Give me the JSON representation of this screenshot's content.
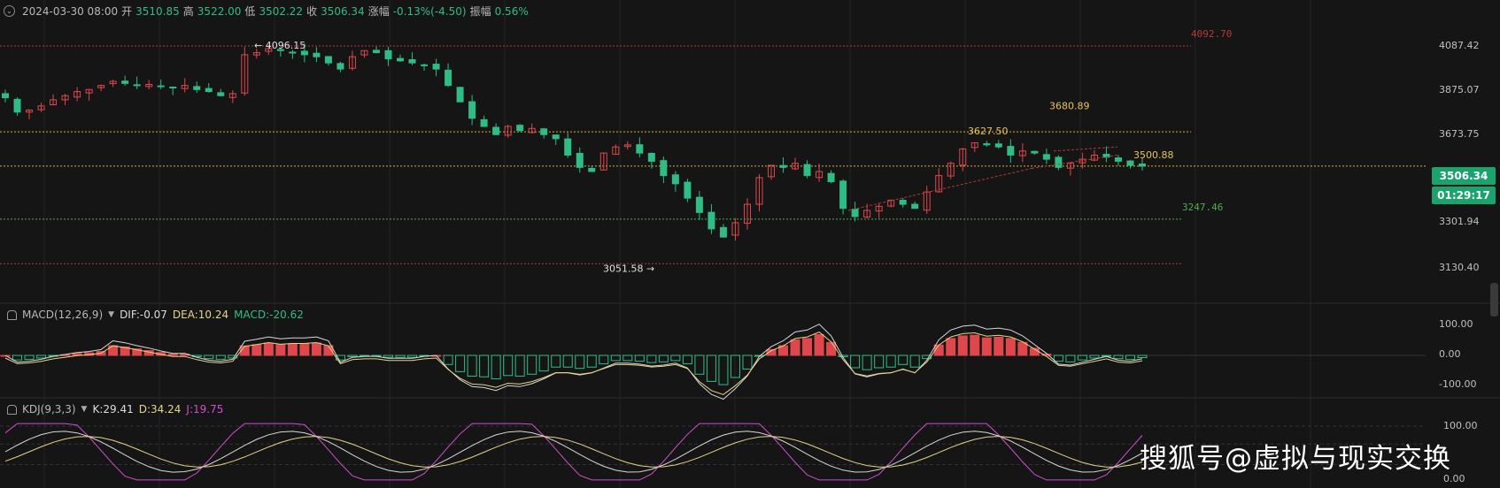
{
  "header": {
    "datetime": "2024-03-30 08:00",
    "open_label": "开",
    "open": "3510.85",
    "high_label": "高",
    "high": "3522.00",
    "low_label": "低",
    "low": "3502.22",
    "close_label": "收",
    "close": "3506.34",
    "change_label": "涨幅",
    "change": "-0.13%(-4.50)",
    "amplitude_label": "振幅",
    "amplitude": "0.56%"
  },
  "price_axis": {
    "ticks": [
      "4087.42",
      "3875.07",
      "3673.75",
      "3301.94",
      "3130.40"
    ],
    "current_price": "3506.34",
    "countdown": "01:29:17"
  },
  "levels": [
    {
      "price": 4092.7,
      "label": "4092.70",
      "color": "#b23a3a"
    },
    {
      "price": 3673.75,
      "label": "",
      "color": "#d6b43a"
    },
    {
      "price": 3506.34,
      "label": "",
      "color": "#d6b43a"
    },
    {
      "price": 3247.46,
      "label": "3247.46",
      "color": "#4caf50"
    },
    {
      "price": 3030.0,
      "label": "",
      "color": "#b23a3a"
    }
  ],
  "annotations": {
    "high_marker": "← 4096.15",
    "low_marker": "3051.58 →",
    "label_a": "3627.50",
    "label_b": "3680.89",
    "label_c": "3500.88"
  },
  "macd": {
    "name": "MACD(12,26,9)",
    "dif_label": "DIF:",
    "dif": "-0.07",
    "dea_label": "DEA:",
    "dea": "10.24",
    "macd_label": "MACD:",
    "macd": "-20.62",
    "ticks": [
      "100.00",
      "0.00",
      "-100.00"
    ]
  },
  "kdj": {
    "name": "KDJ(9,3,3)",
    "k_label": "K:",
    "k": "29.41",
    "d_label": "D:",
    "d": "34.24",
    "j_label": "J:",
    "j": "19.75",
    "ticks": [
      "100.00",
      "0.00"
    ]
  },
  "colors": {
    "up": "#2fbd85",
    "down": "#e0474c",
    "dif_line": "#d8d8d8",
    "dea_line": "#e6d28a",
    "j_line": "#d04fd0",
    "background": "#151515"
  },
  "watermark": "搜狐号@虚拟与现实交换",
  "chart_data": {
    "type": "candlestick",
    "close_trend": [
      3840,
      3770,
      3780,
      3800,
      3830,
      3850,
      3870,
      3880,
      3900,
      3920,
      3910,
      3900,
      3905,
      3895,
      3890,
      3900,
      3880,
      3870,
      3850,
      3860,
      4050,
      4060,
      4080,
      4070,
      4060,
      4050,
      4040,
      4010,
      3980,
      4040,
      4070,
      4060,
      4030,
      4020,
      4010,
      4000,
      3980,
      3900,
      3820,
      3740,
      3700,
      3660,
      3700,
      3680,
      3690,
      3660,
      3640,
      3560,
      3500,
      3480,
      3570,
      3600,
      3610,
      3570,
      3530,
      3460,
      3420,
      3350,
      3280,
      3200,
      3160,
      3230,
      3320,
      3450,
      3510,
      3500,
      3520,
      3460,
      3480,
      3430,
      3300,
      3260,
      3290,
      3310,
      3340,
      3320,
      3300,
      3380,
      3460,
      3520,
      3590,
      3620,
      3610,
      3600,
      3560,
      3580,
      3570,
      3540,
      3500,
      3520,
      3540,
      3560,
      3550,
      3530,
      3510,
      3506
    ]
  }
}
